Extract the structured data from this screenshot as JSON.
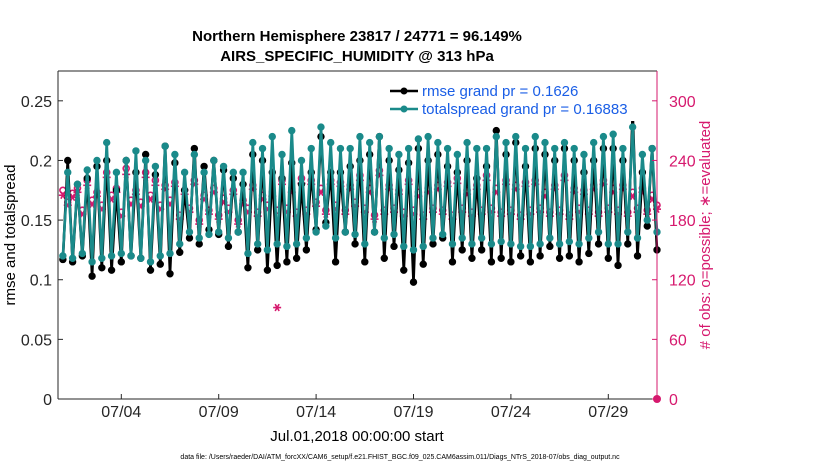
{
  "chart_data": {
    "type": "line",
    "title": "Northern Hemisphere 23817 / 24771 = 96.149%",
    "subtitle": "AIRS_SPECIFIC_HUMIDITY @ 313 hPa",
    "xlabel": "Jul.01,2018 00:00:00 start",
    "ylabel": "rmse and totalspread",
    "ylabel_right": "# of obs: o=possible; ∗=evaluated",
    "footer": "data file: /Users/raeder/DAI/ATM_forcXX/CAM6_setup/f.e21.FHIST_BGC.f09_025.CAM6assim.011/Diags_NTrS_2018-07/obs_diag_output.nc",
    "xlim": [
      0.75,
      31.5
    ],
    "ylim": [
      0,
      0.275
    ],
    "y2lim": [
      0,
      330
    ],
    "x_ticks": [
      4,
      9,
      14,
      19,
      24,
      29
    ],
    "x_tick_labels": [
      "07/04",
      "07/09",
      "07/14",
      "07/19",
      "07/24",
      "07/29"
    ],
    "y_ticks": [
      0,
      0.05,
      0.1,
      0.15,
      0.2,
      0.25
    ],
    "y_tick_labels": [
      "0",
      "0.05",
      "0.1",
      "0.15",
      "0.2",
      "0.25"
    ],
    "y2_ticks": [
      0,
      60,
      120,
      180,
      240,
      300
    ],
    "y2_tick_labels": [
      "0",
      "60",
      "120",
      "180",
      "240",
      "300"
    ],
    "legend_position": "top-right",
    "x_start": 1.0,
    "x_step": 0.25,
    "series": [
      {
        "name": "rmse grand pr = 0.1626",
        "color": "#000000",
        "values": [
          0.117,
          0.2,
          0.115,
          0.18,
          0.12,
          0.185,
          0.103,
          0.195,
          0.11,
          0.2,
          0.108,
          0.175,
          0.115,
          0.2,
          0.12,
          0.19,
          0.118,
          0.205,
          0.108,
          0.188,
          0.113,
          0.212,
          0.105,
          0.198,
          0.123,
          0.175,
          0.135,
          0.21,
          0.13,
          0.195,
          0.142,
          0.2,
          0.138,
          0.192,
          0.128,
          0.185,
          0.14,
          0.18,
          0.11,
          0.205,
          0.125,
          0.2,
          0.108,
          0.19,
          0.112,
          0.185,
          0.115,
          0.198,
          0.118,
          0.18,
          0.125,
          0.19,
          0.142,
          0.22,
          0.148,
          0.19,
          0.115,
          0.19,
          0.14,
          0.195,
          0.13,
          0.2,
          0.115,
          0.205,
          0.14,
          0.22,
          0.118,
          0.2,
          0.128,
          0.192,
          0.108,
          0.198,
          0.098,
          0.21,
          0.113,
          0.2,
          0.13,
          0.205,
          0.135,
          0.195,
          0.115,
          0.19,
          0.125,
          0.2,
          0.118,
          0.185,
          0.125,
          0.195,
          0.115,
          0.225,
          0.118,
          0.205,
          0.115,
          0.215,
          0.12,
          0.195,
          0.115,
          0.21,
          0.12,
          0.205,
          0.128,
          0.2,
          0.118,
          0.21,
          0.12,
          0.2,
          0.115,
          0.19,
          0.122,
          0.2,
          0.13,
          0.21,
          0.118,
          0.21,
          0.112,
          0.2,
          0.13,
          0.24,
          0.12,
          0.19,
          0.145,
          0.21,
          0.125
        ]
      },
      {
        "name": "totalspread grand pr = 0.16883",
        "color": "#1a8a8a",
        "values": [
          0.12,
          0.19,
          0.118,
          0.18,
          0.122,
          0.192,
          0.115,
          0.2,
          0.118,
          0.215,
          0.12,
          0.19,
          0.122,
          0.2,
          0.12,
          0.208,
          0.118,
          0.2,
          0.115,
          0.195,
          0.12,
          0.212,
          0.122,
          0.205,
          0.13,
          0.19,
          0.14,
          0.205,
          0.135,
          0.19,
          0.138,
          0.2,
          0.14,
          0.195,
          0.135,
          0.19,
          0.14,
          0.19,
          0.122,
          0.215,
          0.13,
          0.21,
          0.125,
          0.22,
          0.13,
          0.205,
          0.128,
          0.225,
          0.13,
          0.2,
          0.135,
          0.21,
          0.14,
          0.228,
          0.145,
          0.215,
          0.135,
          0.21,
          0.14,
          0.21,
          0.138,
          0.22,
          0.13,
          0.215,
          0.14,
          0.22,
          0.135,
          0.21,
          0.138,
          0.205,
          0.128,
          0.21,
          0.125,
          0.218,
          0.128,
          0.22,
          0.135,
          0.215,
          0.138,
          0.21,
          0.13,
          0.205,
          0.135,
          0.215,
          0.13,
          0.21,
          0.135,
          0.21,
          0.13,
          0.22,
          0.132,
          0.215,
          0.13,
          0.22,
          0.128,
          0.21,
          0.128,
          0.22,
          0.13,
          0.215,
          0.135,
          0.21,
          0.13,
          0.215,
          0.132,
          0.21,
          0.13,
          0.205,
          0.135,
          0.215,
          0.14,
          0.22,
          0.13,
          0.222,
          0.13,
          0.21,
          0.14,
          0.228,
          0.135,
          0.205,
          0.15,
          0.21,
          0.14
        ]
      }
    ],
    "obs_possible": {
      "name": "o=possible",
      "color": "#d6196e",
      "values": [
        210,
        198,
        207,
        212,
        190,
        220,
        200,
        208,
        195,
        228,
        205,
        212,
        188,
        232,
        200,
        210,
        198,
        228,
        205,
        220,
        195,
        215,
        200,
        218,
        185,
        210,
        192,
        220,
        180,
        205,
        190,
        212,
        185,
        202,
        192,
        210,
        180,
        200,
        192,
        215,
        188,
        205,
        195,
        208,
        190,
        220,
        192,
        212,
        188,
        222,
        190,
        220,
        198,
        212,
        190,
        220,
        195,
        218,
        190,
        215,
        198,
        225,
        192,
        212,
        185,
        230,
        190,
        215,
        192,
        210,
        188,
        220,
        190,
        208,
        185,
        212,
        192,
        215,
        190,
        218,
        185,
        222,
        192,
        210,
        188,
        215,
        190,
        225,
        192,
        212,
        188,
        220,
        190,
        215,
        185,
        218,
        190,
        220,
        192,
        208,
        188,
        215,
        190,
        225,
        185,
        212,
        192,
        210,
        190,
        215,
        188,
        220,
        192,
        212,
        190,
        215,
        188,
        208,
        192,
        212,
        190,
        205,
        195
      ]
    },
    "obs_evaluated": {
      "name": "∗=evaluated",
      "color": "#d6196e",
      "values": [
        205,
        195,
        203,
        208,
        186,
        215,
        196,
        204,
        191,
        223,
        201,
        208,
        184,
        226,
        196,
        206,
        194,
        223,
        201,
        215,
        191,
        211,
        196,
        214,
        181,
        206,
        188,
        216,
        176,
        201,
        186,
        208,
        181,
        198,
        188,
        206,
        176,
        196,
        188,
        211,
        184,
        201,
        191,
        204,
        92,
        216,
        188,
        208,
        184,
        217,
        186,
        216,
        194,
        208,
        186,
        216,
        191,
        214,
        186,
        211,
        194,
        220,
        188,
        208,
        181,
        225,
        186,
        211,
        188,
        206,
        184,
        216,
        186,
        204,
        181,
        208,
        188,
        211,
        186,
        214,
        181,
        217,
        188,
        206,
        184,
        211,
        186,
        220,
        188,
        208,
        184,
        216,
        186,
        211,
        181,
        214,
        186,
        216,
        188,
        204,
        184,
        211,
        186,
        220,
        181,
        208,
        188,
        206,
        186,
        211,
        184,
        216,
        188,
        208,
        186,
        211,
        184,
        204,
        188,
        208,
        186,
        201,
        191
      ]
    },
    "right_axis_marker": {
      "x": 31.5,
      "value": 0
    }
  }
}
